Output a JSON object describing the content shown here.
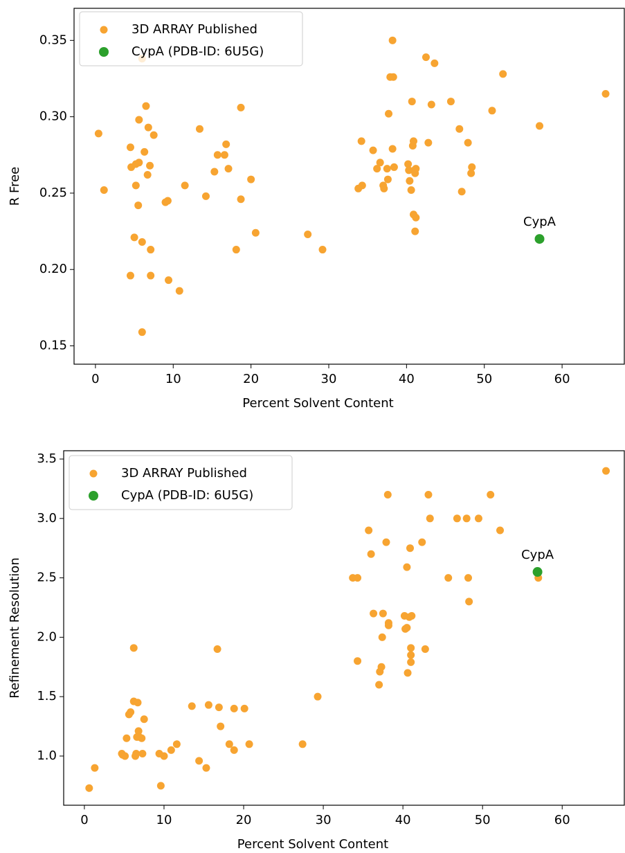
{
  "chart_data": [
    {
      "type": "scatter",
      "x_label": "Percent Solvent Content",
      "y_label": "R Free",
      "xlim": [
        -2.75,
        68
      ],
      "xticks": [
        0,
        10,
        20,
        30,
        40,
        50,
        60
      ],
      "ylim": [
        0.138,
        0.371
      ],
      "yticks": [
        0.15,
        {
          "value": 0.2,
          "label": "0.20"
        },
        0.25,
        {
          "value": 0.3,
          "label": "0.30"
        },
        0.35
      ],
      "legend": "upper left",
      "annotation": "CypA",
      "series": [
        {
          "name": "3D ARRAY Published",
          "color": "#f7a431",
          "x": [
            0.4,
            1.1,
            6.0,
            6.5,
            5.6,
            6.8,
            7.5,
            4.5,
            6.3,
            4.6,
            5.2,
            5.6,
            7.0,
            6.7,
            5.2,
            5.5,
            5.0,
            6.0,
            7.1,
            4.5,
            7.1,
            6.0,
            9.4,
            10.8,
            9.3,
            9.0,
            11.5,
            13.4,
            14.2,
            15.3,
            15.7,
            16.6,
            16.8,
            17.1,
            18.7,
            18.7,
            18.1,
            20.0,
            20.6,
            27.3,
            29.2,
            34.2,
            34.3,
            33.8,
            35.7,
            36.2,
            36.6,
            37.0,
            37.1,
            37.5,
            37.6,
            37.7,
            37.9,
            38.3,
            38.2,
            38.2,
            38.4,
            40.2,
            40.3,
            40.4,
            40.6,
            40.7,
            40.8,
            40.9,
            41.0,
            41.1,
            40.9,
            41.2,
            41.1,
            41.2,
            42.5,
            43.6,
            43.2,
            42.8,
            45.7,
            46.8,
            47.9,
            48.4,
            48.3,
            47.1,
            51.0,
            52.4,
            57.1,
            65.6
          ],
          "values": [
            0.289,
            0.252,
            0.338,
            0.307,
            0.298,
            0.293,
            0.288,
            0.28,
            0.277,
            0.267,
            0.269,
            0.27,
            0.268,
            0.262,
            0.255,
            0.242,
            0.221,
            0.218,
            0.213,
            0.196,
            0.196,
            0.159,
            0.193,
            0.186,
            0.245,
            0.244,
            0.255,
            0.292,
            0.248,
            0.264,
            0.275,
            0.275,
            0.282,
            0.266,
            0.306,
            0.246,
            0.213,
            0.259,
            0.224,
            0.223,
            0.213,
            0.284,
            0.255,
            0.253,
            0.278,
            0.266,
            0.27,
            0.255,
            0.253,
            0.266,
            0.259,
            0.302,
            0.326,
            0.326,
            0.35,
            0.279,
            0.267,
            0.269,
            0.265,
            0.258,
            0.252,
            0.31,
            0.281,
            0.284,
            0.265,
            0.263,
            0.236,
            0.234,
            0.225,
            0.266,
            0.339,
            0.335,
            0.308,
            0.283,
            0.31,
            0.292,
            0.283,
            0.267,
            0.263,
            0.251,
            0.304,
            0.328,
            0.294,
            0.315
          ]
        },
        {
          "name": "CypA (PDB-ID: 6U5G)",
          "color": "#2ca02c",
          "x": [
            57.1
          ],
          "values": [
            0.22
          ]
        }
      ]
    },
    {
      "type": "scatter",
      "x_label": "Percent Solvent Content",
      "y_label": "Refinement Resolution",
      "xlim": [
        -2.6,
        67.8
      ],
      "xticks": [
        0,
        10,
        20,
        30,
        40,
        50,
        60
      ],
      "ylim": [
        0.586,
        3.57
      ],
      "yticks": [
        {
          "value": 1,
          "label": "1.0"
        },
        1.5,
        {
          "value": 2,
          "label": "2.0"
        },
        2.5,
        {
          "value": 3,
          "label": "3.0"
        },
        3.5
      ],
      "legend": "upper left",
      "annotation": "CypA",
      "series": [
        {
          "name": "3D ARRAY Published",
          "color": "#f7a431",
          "x": [
            0.6,
            1.3,
            4.7,
            4.8,
            5.1,
            5.3,
            5.6,
            5.8,
            6.2,
            6.4,
            6.5,
            6.2,
            6.7,
            6.8,
            6.9,
            7.2,
            6.6,
            7.5,
            7.3,
            9.4,
            10.0,
            9.6,
            10.9,
            11.6,
            13.5,
            14.4,
            15.3,
            15.6,
            16.7,
            16.9,
            17.1,
            18.2,
            18.8,
            18.8,
            20.1,
            20.7,
            27.4,
            29.3,
            33.7,
            34.3,
            34.3,
            35.7,
            36.0,
            36.3,
            37.0,
            37.1,
            37.3,
            37.4,
            37.5,
            37.9,
            38.1,
            38.2,
            38.2,
            40.2,
            40.3,
            40.5,
            40.5,
            40.6,
            40.8,
            40.9,
            41.0,
            41.0,
            41.0,
            41.1,
            42.4,
            42.8,
            43.2,
            43.4,
            45.7,
            46.8,
            48.0,
            48.2,
            48.3,
            49.5,
            51.0,
            52.2,
            57.0,
            65.5
          ],
          "values": [
            0.73,
            0.9,
            1.02,
            1.01,
            1.0,
            1.15,
            1.35,
            1.37,
            1.46,
            1.0,
            1.02,
            1.91,
            1.45,
            1.21,
            1.16,
            1.15,
            1.16,
            1.31,
            1.02,
            1.02,
            1.0,
            0.75,
            1.05,
            1.1,
            1.42,
            0.96,
            0.9,
            1.43,
            1.9,
            1.41,
            1.25,
            1.1,
            1.4,
            1.05,
            1.4,
            1.1,
            1.1,
            1.5,
            2.5,
            2.5,
            1.8,
            2.9,
            2.7,
            2.2,
            1.6,
            1.71,
            1.75,
            2.0,
            2.2,
            2.8,
            3.2,
            2.12,
            2.1,
            2.18,
            2.07,
            2.08,
            2.59,
            1.7,
            2.17,
            2.75,
            1.91,
            1.85,
            1.79,
            2.18,
            2.8,
            1.9,
            3.2,
            3.0,
            2.5,
            3.0,
            3.0,
            2.5,
            2.3,
            3.0,
            3.2,
            2.9,
            2.5,
            3.4
          ]
        },
        {
          "name": "CypA (PDB-ID: 6U5G)",
          "color": "#2ca02c",
          "x": [
            56.9
          ],
          "values": [
            2.55
          ]
        }
      ]
    }
  ]
}
